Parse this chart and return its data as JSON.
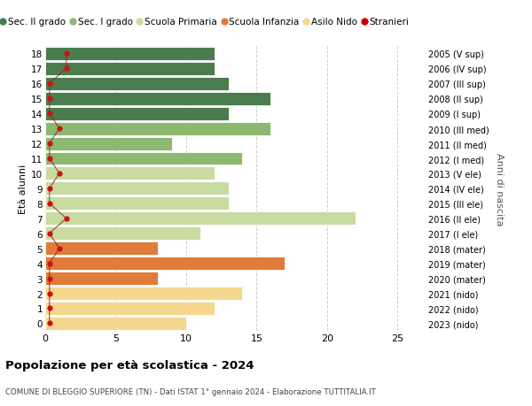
{
  "ages": [
    0,
    1,
    2,
    3,
    4,
    5,
    6,
    7,
    8,
    9,
    10,
    11,
    12,
    13,
    14,
    15,
    16,
    17,
    18
  ],
  "right_labels": [
    "2023 (nido)",
    "2022 (nido)",
    "2021 (nido)",
    "2020 (mater)",
    "2019 (mater)",
    "2018 (mater)",
    "2017 (I ele)",
    "2016 (II ele)",
    "2015 (III ele)",
    "2014 (IV ele)",
    "2013 (V ele)",
    "2012 (I med)",
    "2011 (II med)",
    "2010 (III med)",
    "2009 (I sup)",
    "2008 (II sup)",
    "2007 (III sup)",
    "2006 (IV sup)",
    "2005 (V sup)"
  ],
  "bar_values": [
    10,
    12,
    14,
    8,
    17,
    8,
    11,
    22,
    13,
    13,
    12,
    14,
    9,
    16,
    13,
    16,
    13,
    12,
    12
  ],
  "bar_colors": [
    "#f5d78e",
    "#f5d78e",
    "#f5d78e",
    "#e07b39",
    "#e07b39",
    "#e07b39",
    "#c8dba0",
    "#c8dba0",
    "#c8dba0",
    "#c8dba0",
    "#c8dba0",
    "#8db870",
    "#8db870",
    "#8db870",
    "#4a7c4e",
    "#4a7c4e",
    "#4a7c4e",
    "#4a7c4e",
    "#4a7c4e"
  ],
  "stranieri_x": [
    0.3,
    0.3,
    0.3,
    0.3,
    0.3,
    1.0,
    0.3,
    1.5,
    0.3,
    0.3,
    1.0,
    0.3,
    0.3,
    1.0,
    0.3,
    0.3,
    0.3,
    1.5,
    1.5
  ],
  "legend_labels": [
    "Sec. II grado",
    "Sec. I grado",
    "Scuola Primaria",
    "Scuola Infanzia",
    "Asilo Nido",
    "Stranieri"
  ],
  "legend_colors": [
    "#4a7c4e",
    "#8db870",
    "#c8dba0",
    "#e07b39",
    "#f5d78e",
    "#cc0000"
  ],
  "ylabel_left": "Età alunni",
  "ylabel_right": "Anni di nascita",
  "title": "Popolazione per età scolastica - 2024",
  "subtitle": "COMUNE DI BLEGGIO SUPERIORE (TN) - Dati ISTAT 1° gennaio 2024 - Elaborazione TUTTITALIA.IT",
  "xlim": [
    0,
    27
  ],
  "background_color": "#ffffff",
  "grid_color": "#cccccc"
}
